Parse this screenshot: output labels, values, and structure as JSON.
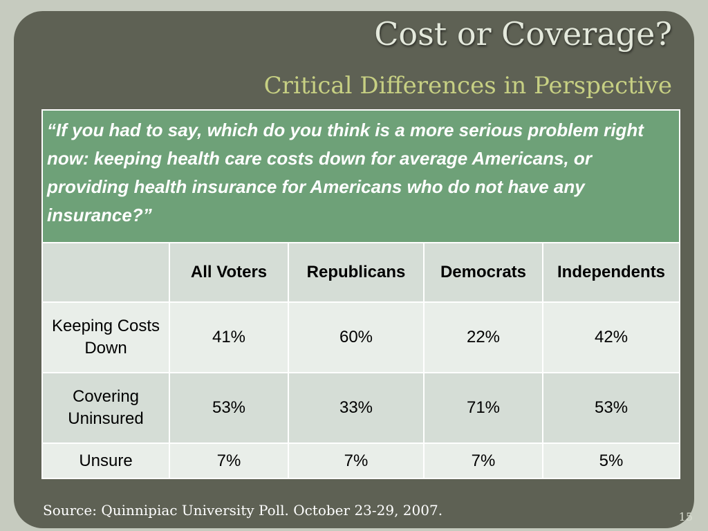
{
  "slide": {
    "title": "Cost or Coverage?",
    "subtitle": "Critical Differences in Perspective",
    "question": "“If you had to say, which do you think is a more serious problem right now: keeping health care costs down for average Americans, or providing health insurance for Americans who do not have any insurance?”",
    "columns": [
      "",
      "All Voters",
      "Republicans",
      "Democrats",
      "Independents"
    ],
    "rows": [
      {
        "label": "Keeping Costs Down",
        "values": [
          "41%",
          "60%",
          "22%",
          "42%"
        ]
      },
      {
        "label": "Covering Uninsured",
        "values": [
          "53%",
          "33%",
          "71%",
          "53%"
        ]
      },
      {
        "label": "Unsure",
        "values": [
          "7%",
          "7%",
          "7%",
          "5%"
        ]
      }
    ],
    "source": "Source:  Quinnipiac University Poll.  October 23-29, 2007.",
    "page_number": "15"
  },
  "colors": {
    "frame": "#5e6154",
    "title": "#e4e9dc",
    "subtitle": "#c7d083",
    "question_bg": "#6ea178",
    "row_dark": "#d5ddd6",
    "row_light": "#e9eee9"
  }
}
